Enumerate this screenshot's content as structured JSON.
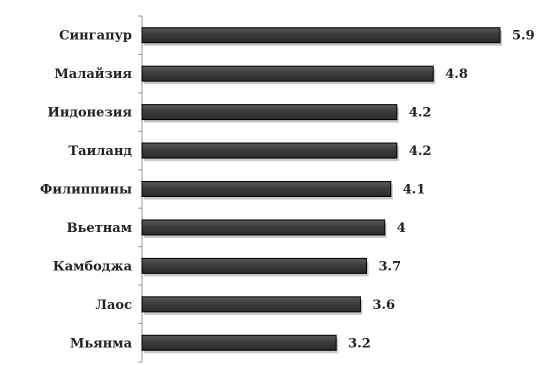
{
  "chart_data": {
    "type": "bar",
    "orientation": "horizontal",
    "categories": [
      "Сингапур",
      "Малайзия",
      "Индонезия",
      "Таиланд",
      "Филиппины",
      "Вьетнам",
      "Камбоджа",
      "Лаос",
      "Мьянма"
    ],
    "values": [
      5.9,
      4.8,
      4.2,
      4.2,
      4.1,
      4,
      3.7,
      3.6,
      3.2
    ],
    "value_labels": [
      "5.9",
      "4.8",
      "4.2",
      "4.2",
      "4.1",
      "4",
      "3.7",
      "3.6",
      "3.2"
    ],
    "title": "",
    "xlabel": "",
    "ylabel": "",
    "xlim": [
      0,
      6.1
    ],
    "grid": false,
    "legend": "none",
    "bar_color": "#3a3a3a",
    "bar_border_color": "#000000",
    "shadow_color": "#9a9a9a"
  }
}
